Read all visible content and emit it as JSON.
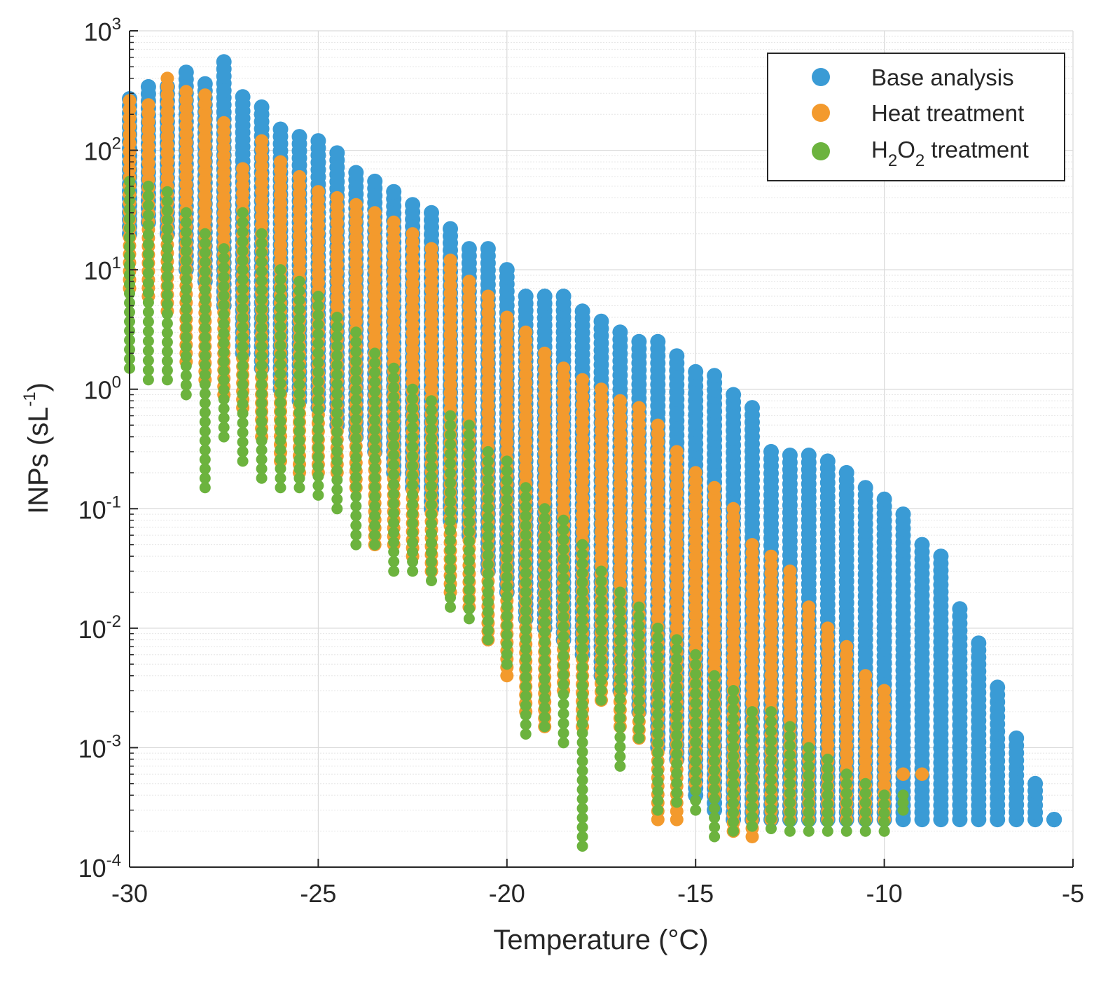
{
  "chart_data": {
    "type": "scatter",
    "xlabel": "Temperature (°C)",
    "ylabel_main": "INPs (sL",
    "ylabel_exp": "-1",
    "ylabel_close": ")",
    "xlim": [
      -30,
      -5
    ],
    "ylim_exponent": [
      -4,
      3
    ],
    "yscale": "log",
    "grid": true,
    "minor_grid": true,
    "legend_position": "top-right",
    "x_ticks": [
      {
        "value": -30,
        "label": "-30"
      },
      {
        "value": -25,
        "label": "-25"
      },
      {
        "value": -20,
        "label": "-20"
      },
      {
        "value": -15,
        "label": "-15"
      },
      {
        "value": -10,
        "label": "-10"
      },
      {
        "value": -5,
        "label": "-5"
      }
    ],
    "y_ticks": [
      {
        "exp": 3,
        "base": "10",
        "sup": "3"
      },
      {
        "exp": 2,
        "base": "10",
        "sup": "2"
      },
      {
        "exp": 1,
        "base": "10",
        "sup": "1"
      },
      {
        "exp": 0,
        "base": "10",
        "sup": "0"
      },
      {
        "exp": -1,
        "base": "10",
        "sup": "-1"
      },
      {
        "exp": -2,
        "base": "10",
        "sup": "-2"
      },
      {
        "exp": -3,
        "base": "10",
        "sup": "-3"
      },
      {
        "exp": -4,
        "base": "10",
        "sup": "-4"
      }
    ],
    "legend": [
      {
        "label": "Base analysis",
        "color": "#3A9BD5"
      },
      {
        "label": "Heat treatment",
        "color": "#F39A2D"
      },
      {
        "label_parts": [
          "H",
          "2",
          "O",
          "2",
          " treatment"
        ],
        "color": "#6CB33E"
      }
    ],
    "series": [
      {
        "name": "Base analysis",
        "color": "#3A9BD5",
        "marker_size": "large",
        "temperatures": [
          -30,
          -29.5,
          -29,
          -28.5,
          -28,
          -27.5,
          -27,
          -26.5,
          -26,
          -25.5,
          -25,
          -24.5,
          -24,
          -23.5,
          -23,
          -22.5,
          -22,
          -21.5,
          -21,
          -20.5,
          -20,
          -19.5,
          -19,
          -18.5,
          -18,
          -17.5,
          -17,
          -16.5,
          -16,
          -15.5,
          -15,
          -14.5,
          -14,
          -13.5,
          -13,
          -12.5,
          -12,
          -11.5,
          -11,
          -10.5,
          -10,
          -9.5,
          -9,
          -8.5,
          -8,
          -7.5,
          -7,
          -6.5,
          -6,
          -5.5
        ],
        "max_values": [
          270,
          340,
          340,
          450,
          360,
          550,
          280,
          230,
          150,
          130,
          120,
          95,
          65,
          55,
          45,
          35,
          30,
          22,
          15,
          15,
          10,
          6,
          6,
          6,
          4.5,
          3.7,
          3,
          2.5,
          2.5,
          1.9,
          1.4,
          1.3,
          0.9,
          0.7,
          0.3,
          0.28,
          0.28,
          0.25,
          0.2,
          0.15,
          0.12,
          0.09,
          0.05,
          0.04,
          0.0145,
          0.0075,
          0.0032,
          0.0012,
          0.0005,
          0.00025
        ],
        "min_values": [
          20,
          25,
          20,
          10,
          8,
          5,
          2,
          1.5,
          1,
          0.8,
          0.7,
          0.5,
          0.4,
          0.3,
          0.2,
          0.15,
          0.1,
          0.08,
          0.06,
          0.03,
          0.02,
          0.012,
          0.01,
          0.008,
          0.006,
          0.004,
          0.003,
          0.002,
          0.001,
          0.0008,
          0.0004,
          0.0003,
          0.00025,
          0.00025,
          0.00025,
          0.00025,
          0.00025,
          0.00025,
          0.00025,
          0.00025,
          0.00025,
          0.00025,
          0.00025,
          0.00025,
          0.00025,
          0.00025,
          0.00025,
          0.00025,
          0.00025,
          0.00025
        ]
      },
      {
        "name": "Heat treatment",
        "color": "#F39A2D",
        "marker_size": "medium",
        "temperatures": [
          -30,
          -29.5,
          -29,
          -28.5,
          -28,
          -27.5,
          -27,
          -26.5,
          -26,
          -25.5,
          -25,
          -24.5,
          -24,
          -23.5,
          -23,
          -22.5,
          -22,
          -21.5,
          -21,
          -20.5,
          -20,
          -19.5,
          -19,
          -18.5,
          -18,
          -17.5,
          -17,
          -16.5,
          -16,
          -15.5,
          -15,
          -14.5,
          -14,
          -13.5,
          -13,
          -12.5,
          -12,
          -11.5,
          -11,
          -10.5,
          -10,
          -9.5,
          -9
        ],
        "max_values": [
          260,
          240,
          400,
          310,
          290,
          170,
          70,
          120,
          80,
          60,
          45,
          40,
          35,
          30,
          25,
          20,
          15,
          12,
          8,
          6,
          4,
          3,
          2,
          1.5,
          1.2,
          1.0,
          0.8,
          0.7,
          0.5,
          0.3,
          0.2,
          0.15,
          0.1,
          0.05,
          0.04,
          0.03,
          0.015,
          0.01,
          0.007,
          0.004,
          0.003,
          0.0006,
          0.0006
        ],
        "min_values": [
          7,
          6,
          4.5,
          1.7,
          1.2,
          0.9,
          0.7,
          0.4,
          0.25,
          0.2,
          0.2,
          0.2,
          0.15,
          0.05,
          0.05,
          0.04,
          0.03,
          0.02,
          0.015,
          0.008,
          0.004,
          0.002,
          0.0015,
          0.003,
          0.0015,
          0.0025,
          0.0015,
          0.0012,
          0.00025,
          0.00025,
          0.0005,
          0.0004,
          0.0002,
          0.00018,
          0.00025,
          0.00025,
          0.00025,
          0.00025,
          0.00025,
          0.00025,
          0.00025,
          0.0006,
          0.0006
        ]
      },
      {
        "name": "H2O2 treatment",
        "color": "#6CB33E",
        "marker_size": "small",
        "temperatures": [
          -30,
          -29.5,
          -29,
          -28.5,
          -28,
          -27.5,
          -27,
          -26.5,
          -26,
          -25.5,
          -25,
          -24.5,
          -24,
          -23.5,
          -23,
          -22.5,
          -22,
          -21.5,
          -21,
          -20.5,
          -20,
          -19.5,
          -19,
          -18.5,
          -18,
          -17.5,
          -17,
          -16.5,
          -16,
          -15.5,
          -15,
          -14.5,
          -14,
          -13.5,
          -13,
          -12.5,
          -12,
          -11.5,
          -11,
          -10.5,
          -10,
          -9.5
        ],
        "max_values": [
          55,
          50,
          45,
          30,
          20,
          15,
          30,
          20,
          10,
          8,
          6,
          4,
          3,
          2,
          1.5,
          1,
          0.8,
          0.6,
          0.5,
          0.3,
          0.25,
          0.15,
          0.1,
          0.08,
          0.05,
          0.03,
          0.02,
          0.015,
          0.01,
          0.008,
          0.006,
          0.004,
          0.003,
          0.002,
          0.002,
          0.0015,
          0.001,
          0.0008,
          0.0006,
          0.0005,
          0.0004,
          0.0004
        ],
        "min_values": [
          1.5,
          1.2,
          1.2,
          0.9,
          0.15,
          0.4,
          0.25,
          0.18,
          0.15,
          0.15,
          0.13,
          0.1,
          0.05,
          0.05,
          0.03,
          0.03,
          0.025,
          0.015,
          0.012,
          0.008,
          0.005,
          0.0013,
          0.0015,
          0.0011,
          0.00015,
          0.0025,
          0.0007,
          0.0012,
          0.0003,
          0.00035,
          0.0003,
          0.00018,
          0.0002,
          0.00022,
          0.00021,
          0.0002,
          0.0002,
          0.0002,
          0.0002,
          0.0002,
          0.0002,
          0.0003
        ]
      }
    ]
  }
}
